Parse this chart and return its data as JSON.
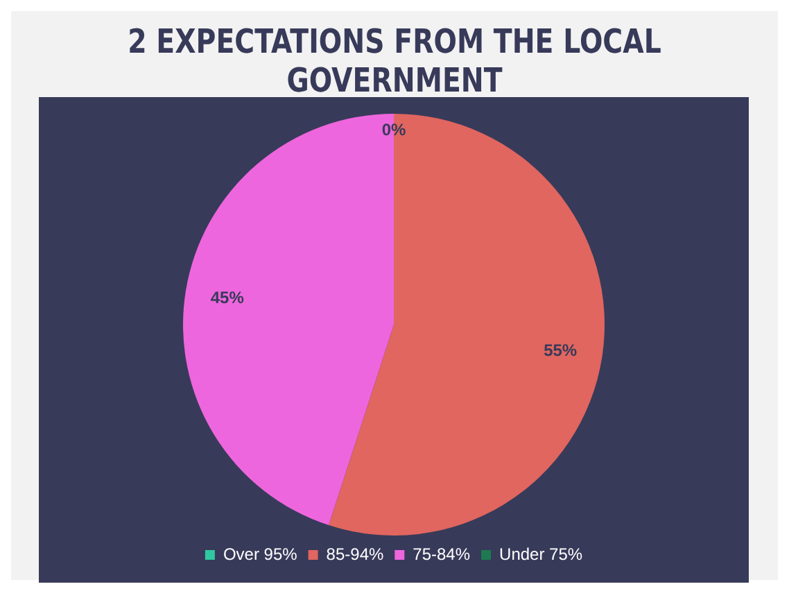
{
  "chart_data": {
    "type": "pie",
    "title": "2 EXPECTATIONS FROM THE LOCAL GOVERNMENT",
    "categories": [
      "Over 95%",
      "85-94%",
      "75-84%",
      "Under 75%"
    ],
    "values": [
      0,
      55,
      45,
      0
    ],
    "colors": [
      "#2ec9a0",
      "#e0665f",
      "#ee66dd",
      "#1e7a50"
    ],
    "value_labels": [
      "0%",
      "55%",
      "45%",
      null
    ],
    "legend": "bottom"
  }
}
